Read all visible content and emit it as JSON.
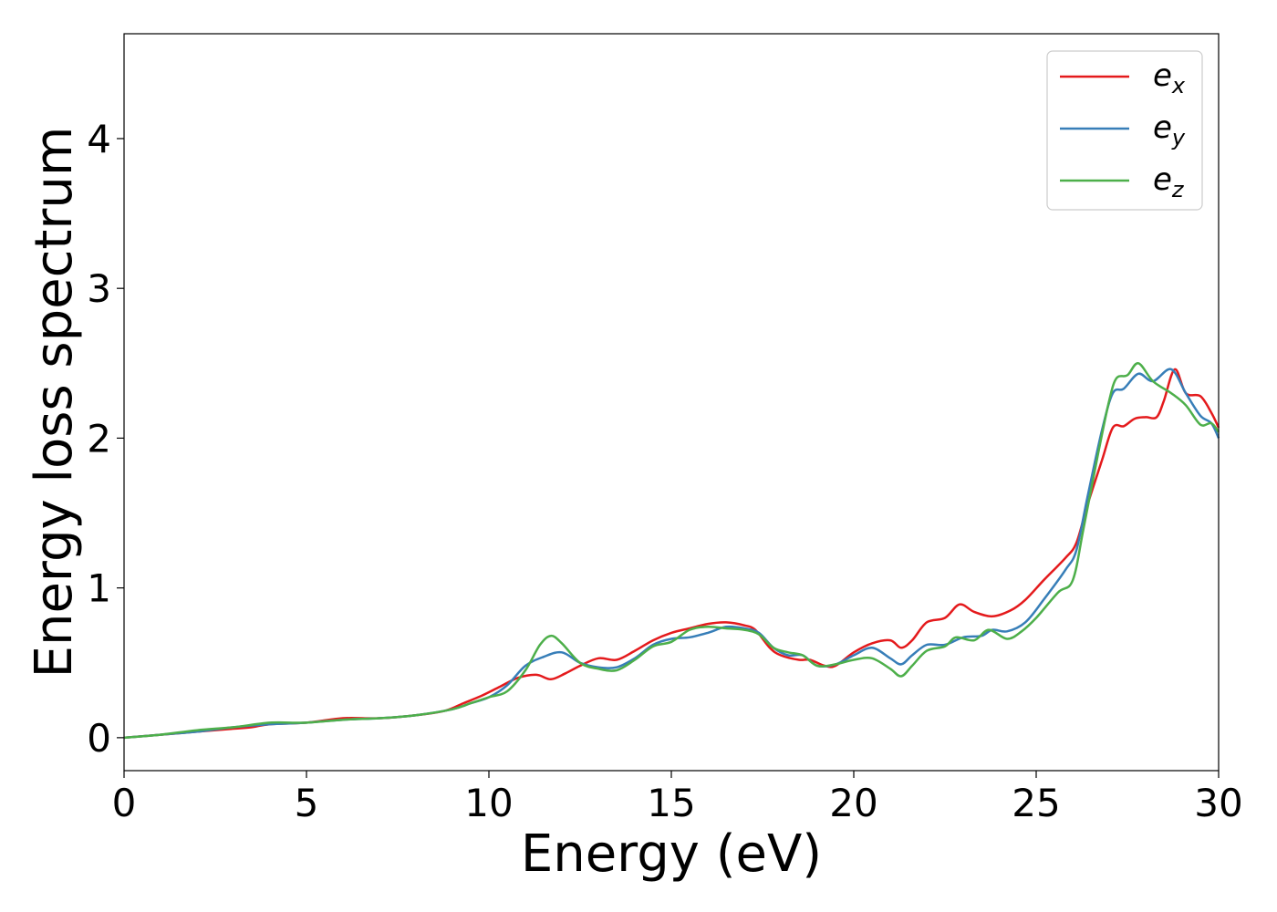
{
  "chart_data": {
    "type": "line",
    "title": "",
    "xlabel": "Energy (eV)",
    "ylabel": "Energy loss spectrum",
    "xlim": [
      0,
      30
    ],
    "ylim": [
      -0.22,
      4.7
    ],
    "xticks": [
      "0",
      "5",
      "10",
      "15",
      "20",
      "25",
      "30"
    ],
    "yticks": [
      "0",
      "1",
      "2",
      "3",
      "4"
    ],
    "grid": false,
    "legend": {
      "placement": "top-right"
    },
    "series": [
      {
        "name": "e",
        "sub": "x",
        "color": "#e41a1c",
        "points": [
          [
            0,
            0
          ],
          [
            1,
            0.02
          ],
          [
            2,
            0.04
          ],
          [
            3,
            0.06
          ],
          [
            3.5,
            0.07
          ],
          [
            4,
            0.09
          ],
          [
            5,
            0.1
          ],
          [
            6,
            0.13
          ],
          [
            7,
            0.13
          ],
          [
            8,
            0.15
          ],
          [
            8.8,
            0.18
          ],
          [
            9.3,
            0.23
          ],
          [
            9.8,
            0.28
          ],
          [
            10.3,
            0.34
          ],
          [
            10.8,
            0.4
          ],
          [
            11.3,
            0.42
          ],
          [
            11.7,
            0.39
          ],
          [
            12.1,
            0.43
          ],
          [
            12.5,
            0.48
          ],
          [
            13,
            0.53
          ],
          [
            13.5,
            0.52
          ],
          [
            14,
            0.58
          ],
          [
            14.5,
            0.65
          ],
          [
            15,
            0.7
          ],
          [
            15.5,
            0.73
          ],
          [
            16,
            0.76
          ],
          [
            16.5,
            0.77
          ],
          [
            17,
            0.75
          ],
          [
            17.3,
            0.72
          ],
          [
            17.7,
            0.6
          ],
          [
            18,
            0.55
          ],
          [
            18.5,
            0.52
          ],
          [
            18.8,
            0.52
          ],
          [
            19.2,
            0.48
          ],
          [
            19.5,
            0.48
          ],
          [
            20,
            0.57
          ],
          [
            20.5,
            0.63
          ],
          [
            21,
            0.65
          ],
          [
            21.3,
            0.6
          ],
          [
            21.6,
            0.65
          ],
          [
            22,
            0.77
          ],
          [
            22.5,
            0.8
          ],
          [
            22.9,
            0.89
          ],
          [
            23.3,
            0.84
          ],
          [
            23.8,
            0.81
          ],
          [
            24.3,
            0.85
          ],
          [
            24.7,
            0.92
          ],
          [
            25.2,
            1.05
          ],
          [
            25.8,
            1.2
          ],
          [
            26.1,
            1.3
          ],
          [
            26.4,
            1.55
          ],
          [
            26.8,
            1.85
          ],
          [
            27.1,
            2.07
          ],
          [
            27.4,
            2.08
          ],
          [
            27.7,
            2.13
          ],
          [
            28,
            2.14
          ],
          [
            28.3,
            2.14
          ],
          [
            28.5,
            2.25
          ],
          [
            28.8,
            2.46
          ],
          [
            29.1,
            2.3
          ],
          [
            29.5,
            2.28
          ],
          [
            29.8,
            2.17
          ],
          [
            30,
            2.07
          ]
        ]
      },
      {
        "name": "e",
        "sub": "y",
        "color": "#377eb8",
        "points": [
          [
            0,
            0
          ],
          [
            1,
            0.02
          ],
          [
            2,
            0.04
          ],
          [
            3,
            0.07
          ],
          [
            4,
            0.09
          ],
          [
            5,
            0.1
          ],
          [
            6,
            0.12
          ],
          [
            7,
            0.13
          ],
          [
            8,
            0.15
          ],
          [
            9,
            0.19
          ],
          [
            9.5,
            0.23
          ],
          [
            10,
            0.27
          ],
          [
            10.5,
            0.35
          ],
          [
            11,
            0.48
          ],
          [
            11.5,
            0.54
          ],
          [
            12,
            0.57
          ],
          [
            12.5,
            0.5
          ],
          [
            13,
            0.47
          ],
          [
            13.5,
            0.47
          ],
          [
            14,
            0.53
          ],
          [
            14.5,
            0.62
          ],
          [
            15,
            0.66
          ],
          [
            15.5,
            0.67
          ],
          [
            16,
            0.7
          ],
          [
            16.5,
            0.74
          ],
          [
            17,
            0.73
          ],
          [
            17.4,
            0.7
          ],
          [
            17.8,
            0.6
          ],
          [
            18.2,
            0.55
          ],
          [
            18.6,
            0.55
          ],
          [
            19,
            0.48
          ],
          [
            19.5,
            0.49
          ],
          [
            20,
            0.55
          ],
          [
            20.5,
            0.6
          ],
          [
            21,
            0.53
          ],
          [
            21.3,
            0.49
          ],
          [
            21.6,
            0.55
          ],
          [
            22,
            0.62
          ],
          [
            22.5,
            0.62
          ],
          [
            23,
            0.67
          ],
          [
            23.5,
            0.68
          ],
          [
            23.8,
            0.72
          ],
          [
            24.2,
            0.71
          ],
          [
            24.7,
            0.77
          ],
          [
            25.2,
            0.92
          ],
          [
            25.8,
            1.12
          ],
          [
            26.1,
            1.25
          ],
          [
            26.4,
            1.6
          ],
          [
            26.8,
            2.05
          ],
          [
            27.1,
            2.3
          ],
          [
            27.4,
            2.33
          ],
          [
            27.8,
            2.43
          ],
          [
            28.2,
            2.38
          ],
          [
            28.7,
            2.46
          ],
          [
            29.1,
            2.3
          ],
          [
            29.5,
            2.15
          ],
          [
            29.8,
            2.1
          ],
          [
            30,
            2.0
          ]
        ]
      },
      {
        "name": "e",
        "sub": "z",
        "color": "#4daf4a",
        "points": [
          [
            0,
            0
          ],
          [
            1,
            0.02
          ],
          [
            2,
            0.05
          ],
          [
            3,
            0.07
          ],
          [
            4,
            0.1
          ],
          [
            5,
            0.1
          ],
          [
            6,
            0.12
          ],
          [
            7,
            0.13
          ],
          [
            8,
            0.15
          ],
          [
            9,
            0.19
          ],
          [
            9.5,
            0.23
          ],
          [
            10,
            0.27
          ],
          [
            10.5,
            0.31
          ],
          [
            11,
            0.45
          ],
          [
            11.4,
            0.62
          ],
          [
            11.7,
            0.68
          ],
          [
            12,
            0.63
          ],
          [
            12.5,
            0.5
          ],
          [
            13,
            0.46
          ],
          [
            13.5,
            0.45
          ],
          [
            14,
            0.52
          ],
          [
            14.5,
            0.61
          ],
          [
            15,
            0.64
          ],
          [
            15.5,
            0.72
          ],
          [
            16,
            0.74
          ],
          [
            16.5,
            0.73
          ],
          [
            17,
            0.72
          ],
          [
            17.4,
            0.69
          ],
          [
            17.8,
            0.6
          ],
          [
            18.2,
            0.57
          ],
          [
            18.6,
            0.55
          ],
          [
            19,
            0.48
          ],
          [
            19.5,
            0.49
          ],
          [
            20,
            0.52
          ],
          [
            20.5,
            0.53
          ],
          [
            21,
            0.46
          ],
          [
            21.3,
            0.41
          ],
          [
            21.6,
            0.48
          ],
          [
            22,
            0.58
          ],
          [
            22.5,
            0.61
          ],
          [
            22.8,
            0.67
          ],
          [
            23.3,
            0.65
          ],
          [
            23.7,
            0.72
          ],
          [
            24.2,
            0.66
          ],
          [
            24.6,
            0.71
          ],
          [
            25,
            0.8
          ],
          [
            25.6,
            0.97
          ],
          [
            26,
            1.05
          ],
          [
            26.3,
            1.4
          ],
          [
            26.7,
            1.9
          ],
          [
            27.0,
            2.25
          ],
          [
            27.2,
            2.4
          ],
          [
            27.5,
            2.42
          ],
          [
            27.8,
            2.5
          ],
          [
            28.2,
            2.38
          ],
          [
            28.7,
            2.3
          ],
          [
            29.1,
            2.22
          ],
          [
            29.5,
            2.09
          ],
          [
            29.8,
            2.1
          ],
          [
            30,
            2.04
          ]
        ]
      }
    ]
  }
}
